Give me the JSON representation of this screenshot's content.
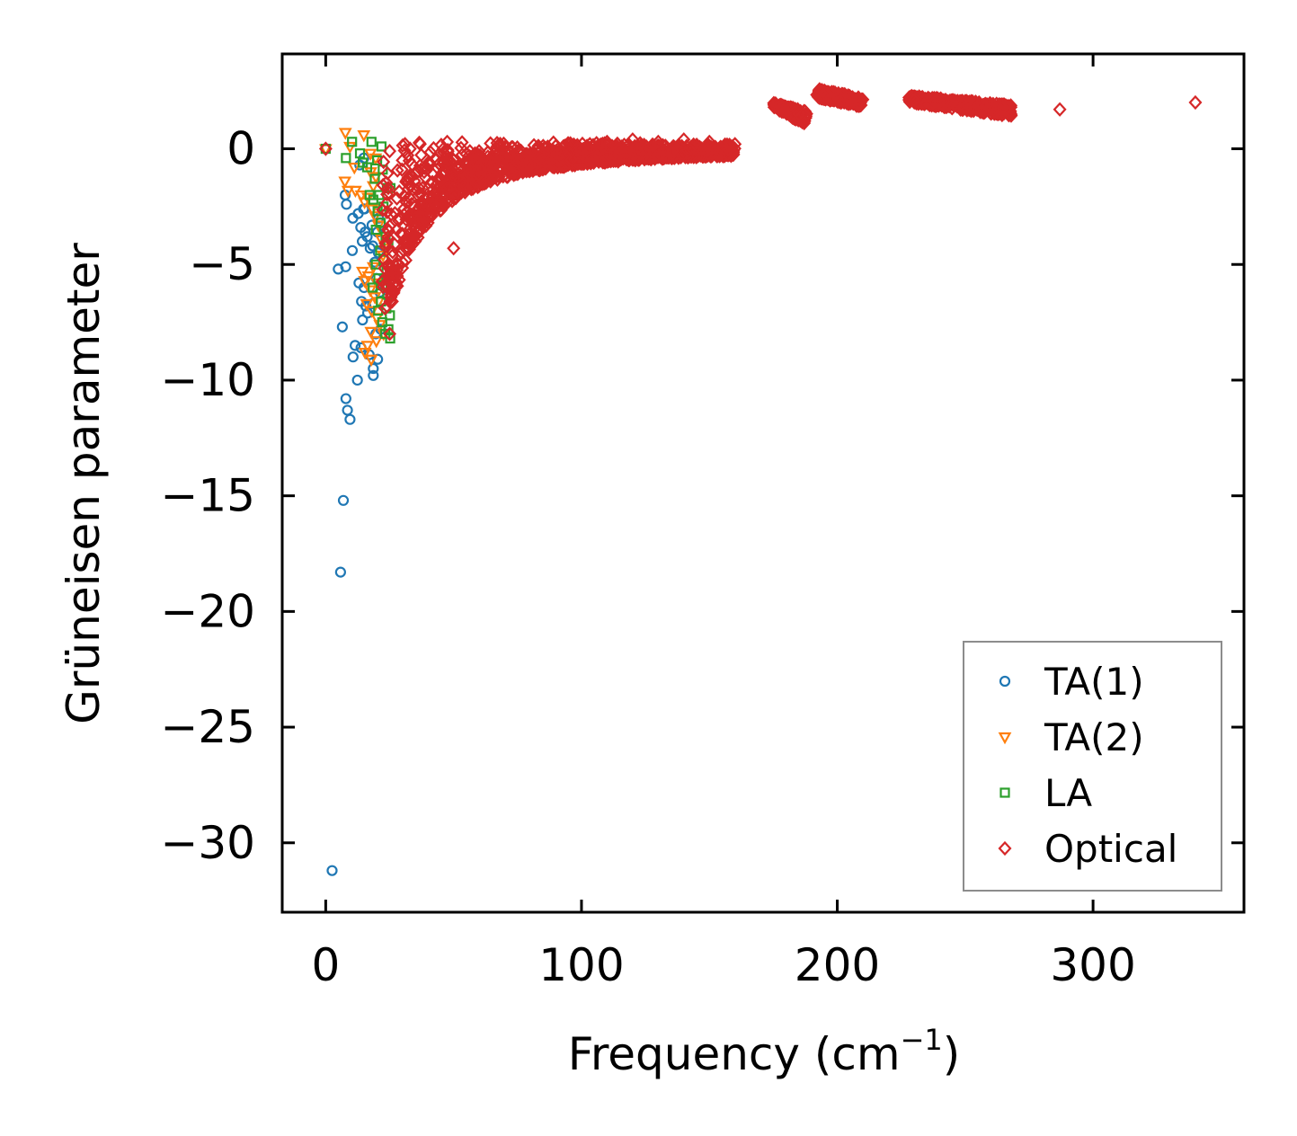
{
  "chart_data": {
    "type": "scatter",
    "title": "",
    "xlabel": "Frequency (cm",
    "xlabel_sup": "−1",
    "xlabel_end": ")",
    "ylabel": "Grüneisen parameter",
    "xlim": [
      -17,
      359
    ],
    "ylim": [
      -33,
      4.1
    ],
    "xticks": [
      0,
      100,
      200,
      300
    ],
    "xtick_labels": [
      "0",
      "100",
      "200",
      "300"
    ],
    "yticks": [
      0,
      -5,
      -10,
      -15,
      -20,
      -25,
      -30
    ],
    "ytick_labels": [
      "0",
      "−5",
      "−10",
      "−15",
      "−20",
      "−25",
      "−30"
    ],
    "grid": false,
    "legend_position": "lower-right",
    "colors": {
      "TA(1)": "#1f77b4",
      "TA(2)": "#ff7f0e",
      "LA": "#2ca02c",
      "Optical": "#d62728"
    },
    "series": [
      {
        "name": "TA(1)",
        "marker": "circle",
        "points": [
          [
            0,
            0
          ],
          [
            2.5,
            -31.2
          ],
          [
            5.8,
            -18.3
          ],
          [
            6.9,
            -15.2
          ],
          [
            9.5,
            -11.7
          ],
          [
            8.5,
            -11.3
          ],
          [
            7.9,
            -10.8
          ],
          [
            12.4,
            -10
          ],
          [
            18.6,
            -9.8
          ],
          [
            18.6,
            -9.5
          ],
          [
            10.7,
            -9.0
          ],
          [
            20.3,
            -9.1
          ],
          [
            17,
            -8.9
          ],
          [
            13.8,
            -8.6
          ],
          [
            11.5,
            -8.5
          ],
          [
            19.6,
            -8
          ],
          [
            21.5,
            -7.8
          ],
          [
            6.5,
            -7.7
          ],
          [
            14.4,
            -7.4
          ],
          [
            16.4,
            -7.1
          ],
          [
            15.7,
            -6.8
          ],
          [
            18.3,
            -6.7
          ],
          [
            14,
            -6.6
          ],
          [
            15,
            -6
          ],
          [
            13,
            -5.8
          ],
          [
            7.8,
            -5.1
          ],
          [
            4.9,
            -5.2
          ],
          [
            19.2,
            -4.9
          ],
          [
            20.6,
            -4.5
          ],
          [
            10.4,
            -4.4
          ],
          [
            18.4,
            -4.2
          ],
          [
            14.3,
            -4.0
          ],
          [
            16.2,
            -3.8
          ],
          [
            15.4,
            -3.6
          ],
          [
            18.1,
            -3.3
          ],
          [
            13.7,
            -3.4
          ],
          [
            20.7,
            -3.0
          ],
          [
            14.8,
            -2.6
          ],
          [
            12.7,
            -2.8
          ],
          [
            10.6,
            -3.0
          ],
          [
            21.4,
            -3.2
          ],
          [
            7.6,
            -2.0
          ],
          [
            8.1,
            -2.4
          ],
          [
            13.3,
            -0.7
          ],
          [
            14.9,
            -0.4
          ],
          [
            15.2,
            -2.6
          ],
          [
            20.2,
            -3.6
          ],
          [
            17.4,
            -4.3
          ],
          [
            19.8,
            -5.6
          ],
          [
            21.2,
            -6.2
          ]
        ]
      },
      {
        "name": "TA(2)",
        "marker": "triangle-down",
        "points": [
          [
            0,
            0
          ],
          [
            7.7,
            0.7
          ],
          [
            14.9,
            0.6
          ],
          [
            9.5,
            0.1
          ],
          [
            17.5,
            -0.2
          ],
          [
            19.5,
            -0.4
          ],
          [
            11.2,
            -0.8
          ],
          [
            17.6,
            -1.0
          ],
          [
            19.6,
            -1.2
          ],
          [
            7.5,
            -1.4
          ],
          [
            18.6,
            -1.6
          ],
          [
            8.7,
            -1.8
          ],
          [
            11.6,
            -1.8
          ],
          [
            13.9,
            -2.0
          ],
          [
            16.5,
            -2.1
          ],
          [
            15.2,
            -2.3
          ],
          [
            18.2,
            -2.6
          ],
          [
            19.3,
            -2.9
          ],
          [
            20.6,
            -3.3
          ],
          [
            21.7,
            -3.9
          ],
          [
            23.5,
            -4.3
          ],
          [
            22.4,
            -4.6
          ],
          [
            18.6,
            -5.1
          ],
          [
            14.4,
            -5.3
          ],
          [
            16.7,
            -5.5
          ],
          [
            15.2,
            -5.7
          ],
          [
            20.1,
            -5.8
          ],
          [
            17.4,
            -6.1
          ],
          [
            19.2,
            -6.4
          ],
          [
            16,
            -6.7
          ],
          [
            18,
            -7.0
          ],
          [
            20,
            -7.3
          ],
          [
            21.2,
            -7.6
          ],
          [
            17.7,
            -7.9
          ],
          [
            19.8,
            -8.3
          ],
          [
            16.3,
            -8.5
          ],
          [
            15.4,
            -8.8
          ],
          [
            17.8,
            -9.1
          ],
          [
            22.6,
            -8.0
          ],
          [
            20.6,
            -6.6
          ]
        ]
      },
      {
        "name": "LA",
        "marker": "square",
        "points": [
          [
            0,
            0
          ],
          [
            7.9,
            -0.4
          ],
          [
            10.3,
            0.3
          ],
          [
            17.9,
            0.3
          ],
          [
            13.4,
            -0.2
          ],
          [
            20.1,
            -0.5
          ],
          [
            14.5,
            -0.6
          ],
          [
            22.3,
            -0.9
          ],
          [
            19.2,
            -1.3
          ],
          [
            23.9,
            -1.7
          ],
          [
            25.3,
            -1.7
          ],
          [
            18.6,
            -2.2
          ],
          [
            22.6,
            -2.5
          ],
          [
            20.3,
            -2.7
          ],
          [
            21.5,
            -3.2
          ],
          [
            19.6,
            -3.5
          ],
          [
            23.4,
            -3.8
          ],
          [
            24.5,
            -4.1
          ],
          [
            21.3,
            -4.4
          ],
          [
            22.6,
            -4.8
          ],
          [
            19.6,
            -5.0
          ],
          [
            23.8,
            -5.3
          ],
          [
            20.6,
            -5.6
          ],
          [
            22.2,
            -5.9
          ],
          [
            24.1,
            -6.3
          ],
          [
            21.6,
            -6.6
          ],
          [
            23.7,
            -6.9
          ],
          [
            25.1,
            -7.2
          ],
          [
            22.1,
            -7.5
          ],
          [
            24.5,
            -7.8
          ],
          [
            25.2,
            -8.2
          ],
          [
            23.3,
            -8.0
          ],
          [
            20.5,
            -7.0
          ],
          [
            18.4,
            -6.0
          ],
          [
            17.2,
            -2.0
          ],
          [
            16.2,
            -0.8
          ],
          [
            21.8,
            0.1
          ],
          [
            20.9,
            -2.0
          ]
        ]
      },
      {
        "name": "Optical",
        "marker": "diamond",
        "points": [
          [
            0,
            0
          ],
          [
            47.5,
            0.3
          ],
          [
            31,
            0.2
          ],
          [
            33,
            0
          ],
          [
            25,
            -0.1
          ],
          [
            30,
            -0.5
          ],
          [
            50,
            -0.5
          ],
          [
            60,
            -0.4
          ],
          [
            70,
            -0.3
          ],
          [
            80,
            -0.2
          ],
          [
            90,
            -0.1
          ],
          [
            100,
            -0.2
          ],
          [
            110,
            0.3
          ],
          [
            120,
            0.4
          ],
          [
            130,
            0.3
          ],
          [
            140,
            0.4
          ],
          [
            150,
            0.3
          ],
          [
            160,
            0.2
          ],
          [
            178,
            1.9
          ],
          [
            185,
            1.5
          ],
          [
            195,
            2.4
          ],
          [
            205,
            2.2
          ],
          [
            230,
            2.1
          ],
          [
            240,
            2.0
          ],
          [
            250,
            2.0
          ],
          [
            260,
            1.8
          ],
          [
            287,
            1.7
          ],
          [
            340,
            2.0
          ],
          [
            50,
            -4.3
          ],
          [
            35,
            -4.0
          ],
          [
            28,
            -5.5
          ],
          [
            26,
            -6.6
          ],
          [
            25,
            -8.0
          ],
          [
            46,
            -2.5
          ],
          [
            40,
            -3.2
          ]
        ],
        "bands": [
          {
            "x": [
              22,
              160
            ],
            "y_top": [
              0.4,
              0.2
            ],
            "y_bot": [
              -9.0,
              0.0
            ]
          },
          {
            "x": [
              175,
              188
            ],
            "y_top": [
              2.0,
              1.6
            ],
            "y_bot": [
              1.8,
              1.0
            ]
          },
          {
            "x": [
              192,
              210
            ],
            "y_top": [
              2.6,
              2.2
            ],
            "y_bot": [
              2.2,
              1.8
            ]
          },
          {
            "x": [
              228,
              268
            ],
            "y_top": [
              2.3,
              1.9
            ],
            "y_bot": [
              2.0,
              1.4
            ]
          }
        ]
      }
    ]
  }
}
